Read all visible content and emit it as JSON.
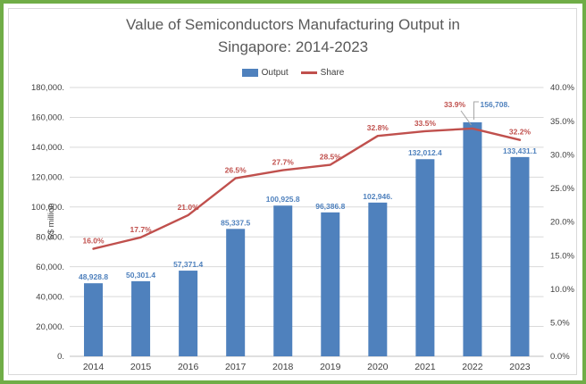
{
  "title": {
    "lines": [
      "Value of Semiconductors Manufacturing Output in",
      "Singapore: 2014-2023"
    ]
  },
  "legend": {
    "items": [
      {
        "label": "Output",
        "type": "bar"
      },
      {
        "label": "Share",
        "type": "line"
      }
    ]
  },
  "colors": {
    "output_blue": "#4F81BD",
    "share_red": "#C0504D",
    "frame_green": "#70AD47",
    "grid": "#D9D9D9",
    "axis_line": "#BFBFBF",
    "tick_text": "#404040",
    "title_gray": "#595959",
    "leader_gray": "#A6A6A6"
  },
  "chart_data": {
    "type": "bar",
    "title": "Value of Semiconductors Manufacturing Output in Singapore: 2014-2023",
    "categories": [
      "2014",
      "2015",
      "2016",
      "2017",
      "2018",
      "2019",
      "2020",
      "2021",
      "2022",
      "2023"
    ],
    "series": [
      {
        "name": "Output",
        "type": "bar",
        "axis": "left",
        "values": [
          48928.8,
          50301.4,
          57371.4,
          85337.5,
          100925.8,
          96386.8,
          102946,
          132012.4,
          156708,
          133431.1
        ],
        "labels": [
          "48,928.8",
          "50,301.4",
          "57,371.4",
          "85,337.5",
          "100,925.8",
          "96,386.8",
          "102,946.",
          "132,012.4",
          "156,708.",
          "133,431.1"
        ]
      },
      {
        "name": "Share",
        "type": "line",
        "axis": "right",
        "values": [
          16.0,
          17.7,
          21.0,
          26.5,
          27.7,
          28.5,
          32.8,
          33.5,
          33.9,
          32.2
        ],
        "labels": [
          "16.0%",
          "17.7%",
          "21.0%",
          "26.5%",
          "27.7%",
          "28.5%",
          "32.8%",
          "33.5%",
          "33.9%",
          "32.2%"
        ]
      }
    ],
    "left_axis": {
      "title": "S$ million",
      "min": 0,
      "max": 180000,
      "step": 20000,
      "tick_labels": [
        "0.",
        "20,000.",
        "40,000.",
        "60,000.",
        "80,000.",
        "100,000.",
        "120,000.",
        "140,000.",
        "160,000.",
        "180,000."
      ]
    },
    "right_axis": {
      "min": 0,
      "max": 40,
      "step": 5,
      "tick_labels": [
        "0.0%",
        "5.0%",
        "10.0%",
        "15.0%",
        "20.0%",
        "25.0%",
        "30.0%",
        "35.0%",
        "40.0%"
      ]
    },
    "grid": true,
    "legend_position": "top"
  }
}
